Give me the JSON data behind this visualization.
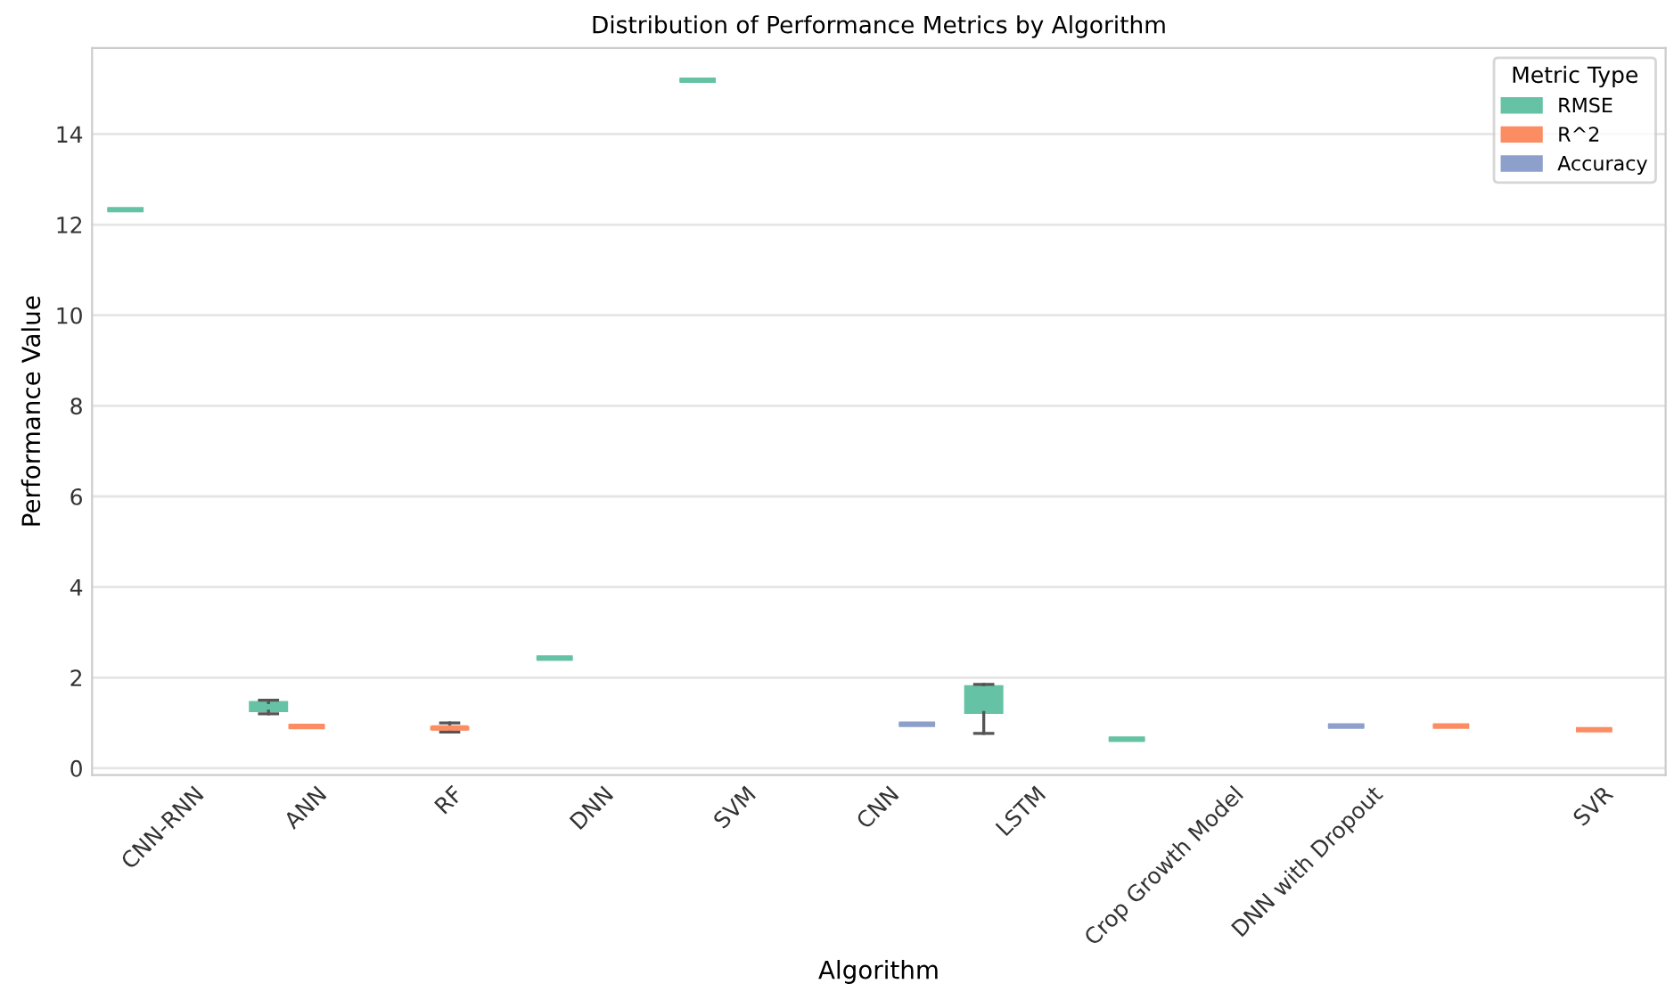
{
  "chart_data": {
    "type": "box",
    "title": "Distribution of Performance Metrics by Algorithm",
    "xlabel": "Algorithm",
    "ylabel": "Performance Value",
    "legend_title": "Metric Type",
    "categories": [
      "CNN-RNN",
      "ANN",
      "RF",
      "DNN",
      "SVM",
      "CNN",
      "LSTM",
      "Crop Growth Model",
      "DNN with Dropout",
      null,
      "SVR"
    ],
    "series": [
      {
        "name": "RMSE",
        "color": "#66c2a5",
        "boxes": [
          {
            "low": 12.33,
            "q1": 12.33,
            "median": 12.33,
            "q3": 12.33,
            "high": 12.33
          },
          {
            "low": 1.2,
            "q1": 1.27,
            "median": 1.35,
            "q3": 1.45,
            "high": 1.5
          },
          null,
          {
            "low": 2.43,
            "q1": 2.43,
            "median": 2.43,
            "q3": 2.43,
            "high": 2.43
          },
          {
            "low": 15.19,
            "q1": 15.19,
            "median": 15.19,
            "q3": 15.19,
            "high": 15.19
          },
          null,
          {
            "low": 0.77,
            "q1": 1.23,
            "median": 1.75,
            "q3": 1.8,
            "high": 1.85
          },
          {
            "low": 0.64,
            "q1": 0.64,
            "median": 0.64,
            "q3": 0.64,
            "high": 0.64
          },
          null,
          null,
          null
        ]
      },
      {
        "name": "R^2",
        "color": "#fc8d62",
        "boxes": [
          null,
          {
            "low": 0.92,
            "q1": 0.92,
            "median": 0.92,
            "q3": 0.92,
            "high": 0.92
          },
          {
            "low": 0.8,
            "q1": 0.87,
            "median": 0.89,
            "q3": 0.9,
            "high": 1.0
          },
          null,
          null,
          null,
          null,
          null,
          null,
          {
            "low": 0.93,
            "q1": 0.93,
            "median": 0.93,
            "q3": 0.93,
            "high": 0.93
          },
          {
            "low": 0.85,
            "q1": 0.85,
            "median": 0.85,
            "q3": 0.85,
            "high": 0.85
          }
        ]
      },
      {
        "name": "Accuracy",
        "color": "#8da0cb",
        "boxes": [
          null,
          null,
          null,
          null,
          null,
          {
            "low": 0.97,
            "q1": 0.97,
            "median": 0.97,
            "q3": 0.97,
            "high": 0.97
          },
          null,
          null,
          {
            "low": 0.93,
            "q1": 0.93,
            "median": 0.93,
            "q3": 0.93,
            "high": 0.93
          },
          null,
          null
        ]
      }
    ],
    "ylim": [
      -0.15,
      15.9
    ],
    "yticks": [
      0,
      2,
      4,
      6,
      8,
      10,
      12,
      14
    ],
    "grid": "y",
    "legend": "top right"
  }
}
